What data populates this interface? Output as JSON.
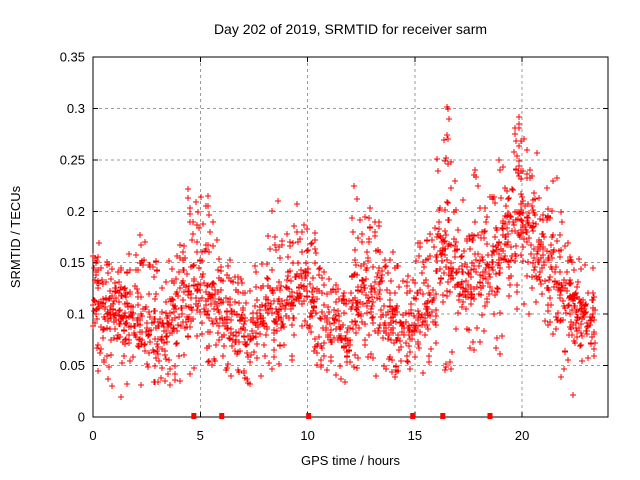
{
  "window": {
    "title": "Day 202 of 2019, SRMTID for receiver sarm"
  },
  "chart_data": {
    "type": "scatter",
    "title": "Day 202 of 2019, SRMTID for receiver sarm",
    "xlabel": "GPS time / hours",
    "ylabel": "SRMTID / TECUs",
    "xlim": [
      0,
      24
    ],
    "ylim": [
      0,
      0.35
    ],
    "xticks": {
      "values": [
        0,
        5,
        10,
        15,
        20
      ],
      "labels": [
        "0",
        "5",
        "10",
        "15",
        "20"
      ]
    },
    "yticks": {
      "values": [
        0,
        0.05,
        0.1,
        0.15,
        0.2,
        0.25,
        0.3,
        0.35
      ],
      "labels": [
        "0",
        "0.05",
        "0.1",
        "0.15",
        "0.2",
        "0.25",
        "0.3",
        "0.35"
      ]
    },
    "grid": true,
    "grid_style": "dashed",
    "legend": "none",
    "series_name": "SRMTID",
    "marker": {
      "glyph": "plus",
      "size": 7,
      "color": "#ff0000"
    },
    "zero_marker": {
      "glyph": "filled-square",
      "size": 5,
      "color": "#ff0000"
    },
    "colors": {
      "marker": "#ff0000",
      "grid": "#9b9b9b",
      "frame": "#000000",
      "background": "#ffffff"
    },
    "zero_marker_hours": [
      4.7,
      6.0,
      10.05,
      14.9,
      16.3,
      18.5
    ],
    "bin_fields": [
      "x_start",
      "x_end",
      "count",
      "core_low",
      "core_high",
      "y_min",
      "y_max"
    ],
    "density_bins": [
      [
        0.0,
        0.5,
        45,
        0.07,
        0.15,
        0.04,
        0.17
      ],
      [
        0.5,
        1.0,
        45,
        0.06,
        0.14,
        0.03,
        0.17
      ],
      [
        1.0,
        1.5,
        45,
        0.06,
        0.14,
        0.02,
        0.165
      ],
      [
        1.5,
        2.0,
        42,
        0.06,
        0.14,
        0.03,
        0.17
      ],
      [
        2.0,
        2.5,
        42,
        0.06,
        0.13,
        0.03,
        0.175
      ],
      [
        2.5,
        3.0,
        40,
        0.05,
        0.12,
        0.03,
        0.16
      ],
      [
        3.0,
        3.5,
        40,
        0.05,
        0.12,
        0.025,
        0.15
      ],
      [
        3.5,
        4.0,
        40,
        0.06,
        0.13,
        0.03,
        0.16
      ],
      [
        4.0,
        4.5,
        42,
        0.07,
        0.15,
        0.03,
        0.2
      ],
      [
        4.5,
        5.0,
        42,
        0.08,
        0.16,
        0.03,
        0.21
      ],
      [
        5.0,
        5.5,
        40,
        0.07,
        0.15,
        0.04,
        0.215
      ],
      [
        5.5,
        6.0,
        40,
        0.06,
        0.14,
        0.04,
        0.19
      ],
      [
        6.0,
        6.5,
        40,
        0.06,
        0.13,
        0.035,
        0.16
      ],
      [
        6.5,
        7.0,
        38,
        0.05,
        0.12,
        0.03,
        0.15
      ],
      [
        7.0,
        7.5,
        36,
        0.05,
        0.11,
        0.03,
        0.145
      ],
      [
        7.5,
        8.0,
        36,
        0.06,
        0.12,
        0.035,
        0.15
      ],
      [
        8.0,
        8.5,
        38,
        0.07,
        0.14,
        0.04,
        0.19
      ],
      [
        8.5,
        9.0,
        38,
        0.07,
        0.15,
        0.04,
        0.2
      ],
      [
        9.0,
        9.5,
        38,
        0.08,
        0.15,
        0.05,
        0.19
      ],
      [
        9.5,
        10.0,
        40,
        0.09,
        0.16,
        0.05,
        0.19
      ],
      [
        10.0,
        10.5,
        38,
        0.08,
        0.15,
        0.05,
        0.18
      ],
      [
        10.5,
        11.0,
        34,
        0.06,
        0.12,
        0.04,
        0.15
      ],
      [
        11.0,
        11.5,
        34,
        0.05,
        0.12,
        0.03,
        0.14
      ],
      [
        11.5,
        12.0,
        40,
        0.04,
        0.11,
        0.025,
        0.13
      ],
      [
        12.0,
        12.5,
        44,
        0.07,
        0.16,
        0.04,
        0.21
      ],
      [
        12.5,
        13.0,
        44,
        0.08,
        0.17,
        0.05,
        0.2
      ],
      [
        13.0,
        13.5,
        42,
        0.07,
        0.16,
        0.04,
        0.19
      ],
      [
        13.5,
        14.0,
        40,
        0.06,
        0.14,
        0.04,
        0.17
      ],
      [
        14.0,
        14.5,
        38,
        0.05,
        0.12,
        0.03,
        0.15
      ],
      [
        14.5,
        15.0,
        36,
        0.05,
        0.12,
        0.03,
        0.14
      ],
      [
        15.0,
        15.5,
        38,
        0.06,
        0.13,
        0.04,
        0.17
      ],
      [
        15.5,
        16.0,
        40,
        0.08,
        0.14,
        0.05,
        0.19
      ],
      [
        16.0,
        16.5,
        46,
        0.1,
        0.2,
        0.04,
        0.27
      ],
      [
        16.5,
        17.0,
        44,
        0.1,
        0.19,
        0.035,
        0.25
      ],
      [
        17.0,
        17.5,
        40,
        0.09,
        0.17,
        0.03,
        0.22
      ],
      [
        17.5,
        18.0,
        40,
        0.1,
        0.17,
        0.05,
        0.24
      ],
      [
        18.0,
        18.5,
        40,
        0.1,
        0.18,
        0.06,
        0.23
      ],
      [
        18.5,
        19.0,
        42,
        0.11,
        0.2,
        0.06,
        0.25
      ],
      [
        19.0,
        19.5,
        44,
        0.12,
        0.21,
        0.07,
        0.26
      ],
      [
        19.5,
        20.0,
        46,
        0.13,
        0.23,
        0.08,
        0.285
      ],
      [
        20.0,
        20.5,
        46,
        0.13,
        0.23,
        0.09,
        0.26
      ],
      [
        20.5,
        21.0,
        44,
        0.12,
        0.21,
        0.08,
        0.25
      ],
      [
        21.0,
        21.5,
        42,
        0.1,
        0.19,
        0.07,
        0.23
      ],
      [
        21.5,
        22.0,
        40,
        0.09,
        0.16,
        0.02,
        0.21
      ],
      [
        22.0,
        22.5,
        42,
        0.08,
        0.14,
        0.05,
        0.17
      ],
      [
        22.5,
        23.0,
        44,
        0.07,
        0.13,
        0.04,
        0.16
      ],
      [
        23.0,
        23.4,
        30,
        0.06,
        0.12,
        0.035,
        0.15
      ]
    ],
    "outlier_points": [
      [
        1.3,
        0.019
      ],
      [
        2.2,
        0.177
      ],
      [
        4.42,
        0.222
      ],
      [
        4.45,
        0.213
      ],
      [
        4.5,
        0.203
      ],
      [
        4.52,
        0.197
      ],
      [
        5.35,
        0.215
      ],
      [
        5.38,
        0.205
      ],
      [
        5.42,
        0.196
      ],
      [
        5.6,
        0.19
      ],
      [
        8.35,
        0.2
      ],
      [
        8.6,
        0.21
      ],
      [
        9.5,
        0.207
      ],
      [
        9.85,
        0.187
      ],
      [
        9.95,
        0.183
      ],
      [
        12.15,
        0.225
      ],
      [
        12.3,
        0.212
      ],
      [
        12.9,
        0.203
      ],
      [
        16.5,
        0.301
      ],
      [
        16.55,
        0.299
      ],
      [
        16.6,
        0.29
      ],
      [
        16.5,
        0.274
      ],
      [
        16.55,
        0.27
      ],
      [
        16.45,
        0.252
      ],
      [
        16.7,
        0.248
      ],
      [
        17.8,
        0.24
      ],
      [
        17.85,
        0.233
      ],
      [
        18.9,
        0.25
      ],
      [
        19.85,
        0.292
      ],
      [
        19.87,
        0.285
      ],
      [
        19.86,
        0.281
      ],
      [
        19.95,
        0.268
      ],
      [
        20.1,
        0.27
      ],
      [
        20.7,
        0.257
      ],
      [
        21.6,
        0.232
      ],
      [
        22.37,
        0.021
      ]
    ]
  }
}
